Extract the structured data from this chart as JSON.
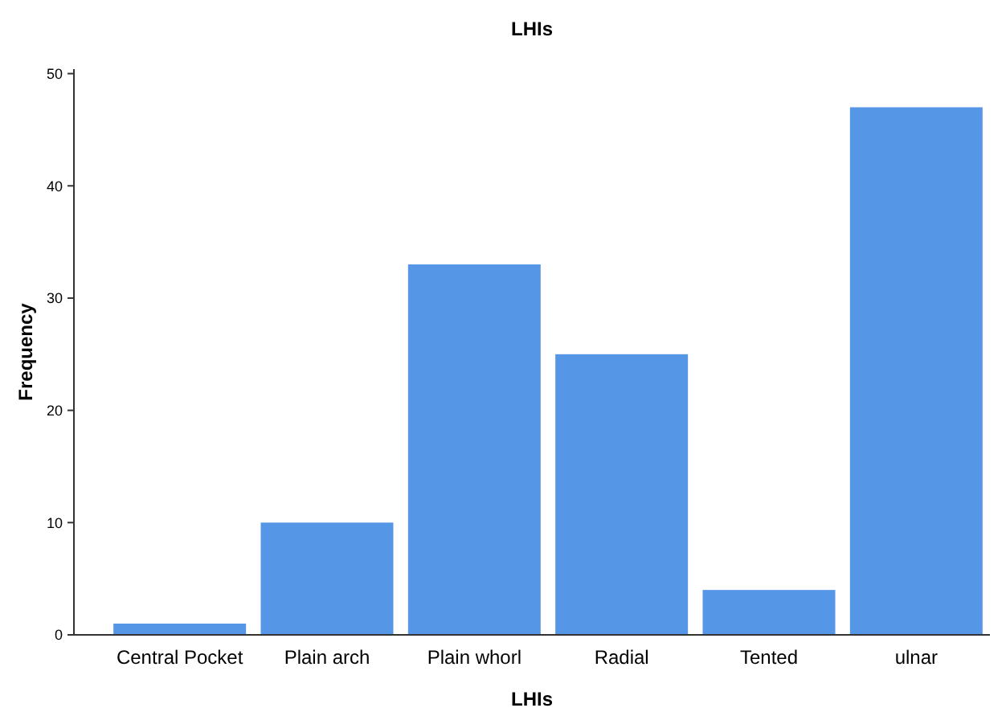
{
  "chart_data": {
    "type": "bar",
    "title": "LHIs",
    "xlabel": "LHIs",
    "ylabel": "Frequency",
    "categories": [
      "Central Pocket",
      "Plain arch",
      "Plain whorl",
      "Radial",
      "Tented",
      "ulnar"
    ],
    "values": [
      1,
      10,
      33,
      25,
      4,
      47
    ],
    "color": "#5596e6",
    "ylim": [
      0,
      50.4
    ],
    "yticks": [
      0,
      10,
      20,
      30,
      40,
      50
    ],
    "grid": false
  }
}
